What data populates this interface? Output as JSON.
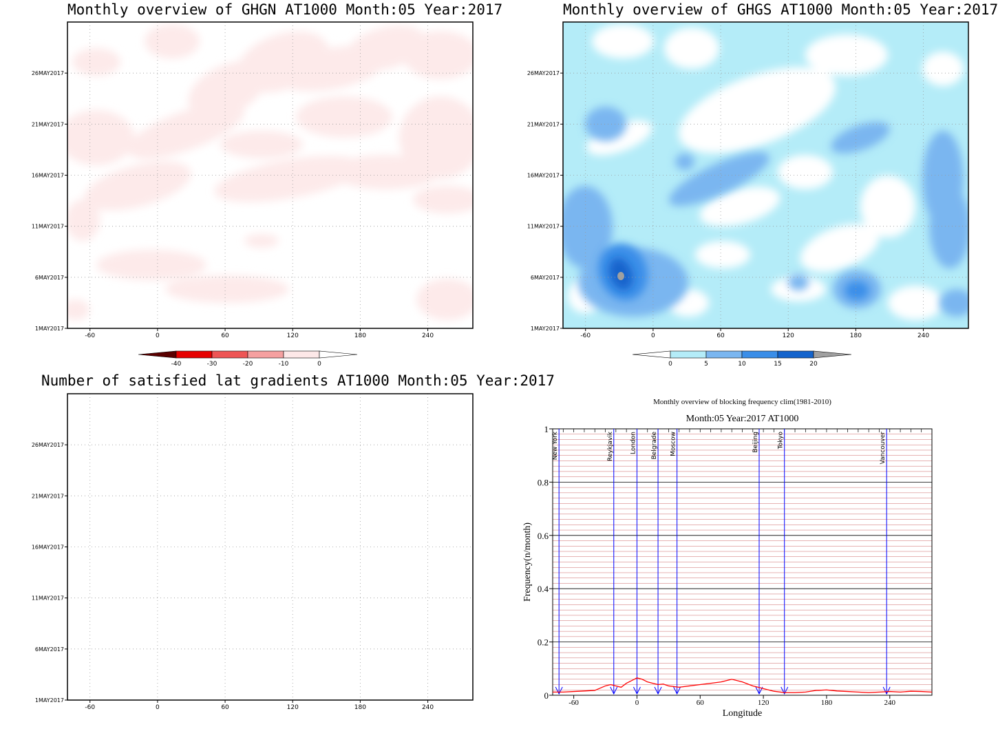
{
  "colors": {
    "red_scale": [
      "#5a0000",
      "#e60000",
      "#ee5555",
      "#f5a0a0",
      "#fde8e8",
      "#ffffff"
    ],
    "blue_scale": [
      "#ffffff",
      "#b4ecf8",
      "#7ab6f0",
      "#3a8ee8",
      "#1464cc",
      "#a0a0a0"
    ],
    "freq_line": "#ff0000",
    "city_line": "#0000ff",
    "minor_grid": "#cc6666"
  },
  "chart_data": [
    {
      "id": "ghgn",
      "type": "heatmap",
      "title": "Monthly overview of GHGN AT1000 Month:05 Year:2017",
      "x_ticks": [
        "-60",
        "0",
        "60",
        "120",
        "180",
        "240"
      ],
      "x_tick_values": [
        -60,
        0,
        60,
        120,
        180,
        240
      ],
      "y_ticks": [
        "1MAY2017",
        "6MAY2017",
        "11MAY2017",
        "16MAY2017",
        "21MAY2017",
        "26MAY2017"
      ],
      "y_tick_values": [
        1,
        6,
        11,
        16,
        21,
        26
      ],
      "xlim": [
        -80,
        280
      ],
      "ylim": [
        1,
        31
      ],
      "colorbar": {
        "labels": [
          "-40",
          "-30",
          "-20",
          "-10",
          "0"
        ]
      }
    },
    {
      "id": "ghgs",
      "type": "heatmap",
      "title": "Monthly overview of GHGS AT1000 Month:05 Year:2017",
      "x_ticks": [
        "-60",
        "0",
        "60",
        "120",
        "180",
        "240"
      ],
      "x_tick_values": [
        -60,
        0,
        60,
        120,
        180,
        240
      ],
      "y_ticks": [
        "1MAY2017",
        "6MAY2017",
        "11MAY2017",
        "16MAY2017",
        "21MAY2017",
        "26MAY2017"
      ],
      "y_tick_values": [
        1,
        6,
        11,
        16,
        21,
        26
      ],
      "xlim": [
        -80,
        280
      ],
      "ylim": [
        1,
        31
      ],
      "colorbar": {
        "labels": [
          "0",
          "5",
          "10",
          "15",
          "20"
        ]
      }
    },
    {
      "id": "lat",
      "type": "heatmap",
      "title": "Number of satisfied lat gradients AT1000 Month:05 Year:2017",
      "x_ticks": [
        "-60",
        "0",
        "60",
        "120",
        "180",
        "240"
      ],
      "x_tick_values": [
        -60,
        0,
        60,
        120,
        180,
        240
      ],
      "y_ticks": [
        "1MAY2017",
        "6MAY2017",
        "11MAY2017",
        "16MAY2017",
        "21MAY2017",
        "26MAY2017"
      ],
      "y_tick_values": [
        1,
        6,
        11,
        16,
        21,
        26
      ],
      "xlim": [
        -80,
        280
      ],
      "ylim": [
        1,
        31
      ]
    },
    {
      "id": "freq",
      "type": "line",
      "title": "Monthly overview of blocking frequency clim(1981-2010)",
      "subtitle": "Month:05 Year:2017  AT1000",
      "xlabel": "Longitude",
      "ylabel": "Frequency(n/month)",
      "xlim": [
        -80,
        280
      ],
      "ylim": [
        0,
        1
      ],
      "x_ticks": [
        "-60",
        "0",
        "60",
        "120",
        "180",
        "240"
      ],
      "x_tick_values": [
        -60,
        0,
        60,
        120,
        180,
        240
      ],
      "y_ticks": [
        "0",
        "0.2",
        "0.4",
        "0.6",
        "0.8",
        "1"
      ],
      "y_tick_values": [
        0,
        0.2,
        0.4,
        0.6,
        0.8,
        1
      ],
      "cities": [
        {
          "name": "New York",
          "lon": -74
        },
        {
          "name": "Reykjavik",
          "lon": -22
        },
        {
          "name": "London",
          "lon": 0
        },
        {
          "name": "Belgrade",
          "lon": 20
        },
        {
          "name": "Moscow",
          "lon": 38
        },
        {
          "name": "Beijing",
          "lon": 116
        },
        {
          "name": "Tokyo",
          "lon": 140
        },
        {
          "name": "Vancouver",
          "lon": 237
        }
      ],
      "series": [
        {
          "x": [
            -80,
            -70,
            -60,
            -50,
            -40,
            -30,
            -25,
            -20,
            -15,
            -10,
            -5,
            0,
            5,
            10,
            15,
            20,
            25,
            30,
            40,
            50,
            60,
            70,
            80,
            90,
            100,
            110,
            115,
            120,
            130,
            140,
            150,
            160,
            170,
            180,
            190,
            200,
            210,
            220,
            230,
            240,
            250,
            260,
            270,
            280
          ],
          "values": [
            0.012,
            0.012,
            0.014,
            0.016,
            0.018,
            0.035,
            0.04,
            0.035,
            0.03,
            0.045,
            0.055,
            0.065,
            0.06,
            0.05,
            0.045,
            0.04,
            0.042,
            0.035,
            0.03,
            0.035,
            0.04,
            0.045,
            0.05,
            0.06,
            0.05,
            0.035,
            0.03,
            0.025,
            0.015,
            0.01,
            0.01,
            0.012,
            0.018,
            0.02,
            0.016,
            0.014,
            0.012,
            0.01,
            0.012,
            0.014,
            0.012,
            0.015,
            0.014,
            0.012
          ]
        }
      ]
    }
  ]
}
